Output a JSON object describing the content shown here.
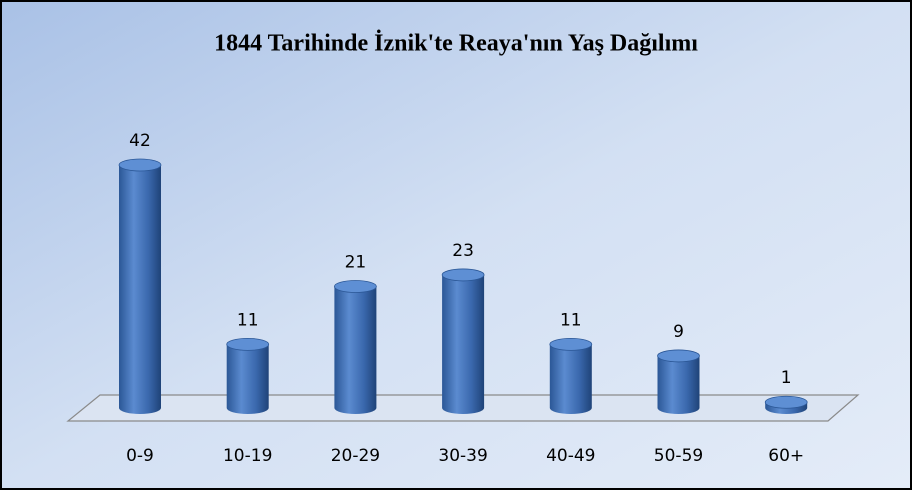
{
  "chart_data": {
    "type": "bar",
    "title": "1844 Tarihinde İznik'te Reaya'nın Yaş Dağılımı",
    "categories": [
      "0-9",
      "10-19",
      "20-29",
      "30-39",
      "40-49",
      "50-59",
      "60+"
    ],
    "values": [
      42,
      11,
      21,
      23,
      11,
      9,
      1
    ],
    "color": "#3f6fb5"
  }
}
